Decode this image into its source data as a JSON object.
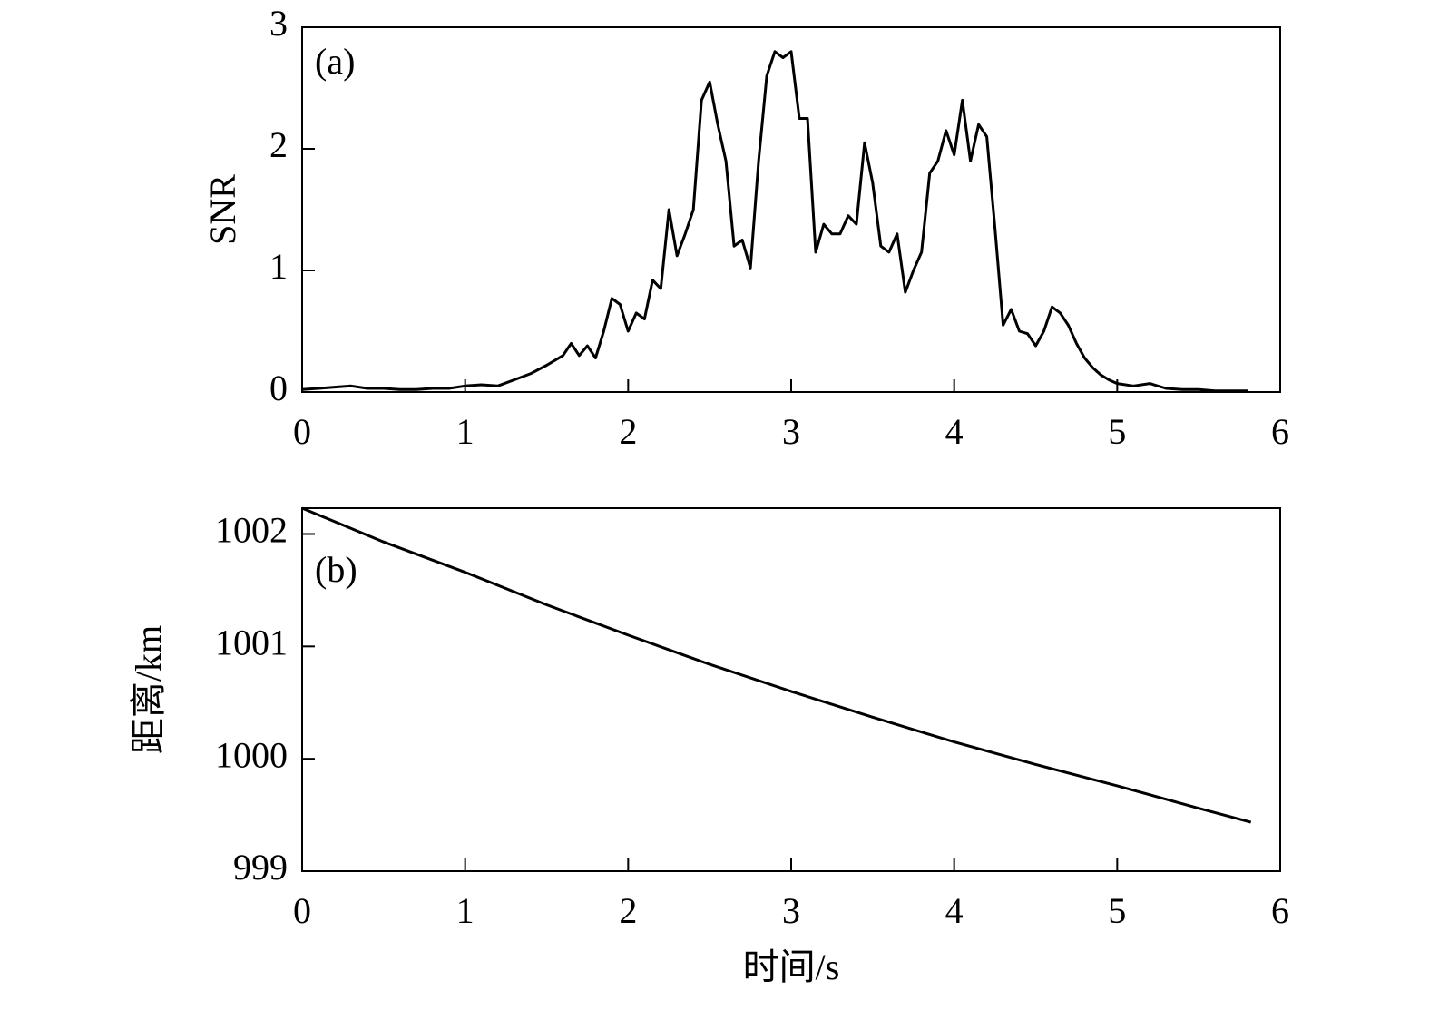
{
  "chart_data": [
    {
      "type": "line",
      "annotation": "(a)",
      "ylabel": "SNR",
      "color": "#000000",
      "x": [
        0,
        0.1,
        0.2,
        0.3,
        0.4,
        0.5,
        0.6,
        0.7,
        0.8,
        0.9,
        1.0,
        1.1,
        1.2,
        1.3,
        1.4,
        1.5,
        1.6,
        1.65,
        1.7,
        1.75,
        1.8,
        1.85,
        1.9,
        1.95,
        2.0,
        2.05,
        2.1,
        2.15,
        2.2,
        2.25,
        2.3,
        2.35,
        2.4,
        2.45,
        2.5,
        2.55,
        2.6,
        2.65,
        2.7,
        2.75,
        2.8,
        2.85,
        2.9,
        2.95,
        3.0,
        3.05,
        3.1,
        3.15,
        3.2,
        3.25,
        3.3,
        3.35,
        3.4,
        3.45,
        3.5,
        3.55,
        3.6,
        3.65,
        3.7,
        3.75,
        3.8,
        3.85,
        3.9,
        3.95,
        4.0,
        4.05,
        4.1,
        4.15,
        4.2,
        4.25,
        4.3,
        4.35,
        4.4,
        4.45,
        4.5,
        4.55,
        4.6,
        4.65,
        4.7,
        4.75,
        4.8,
        4.85,
        4.9,
        4.95,
        5.0,
        5.1,
        5.2,
        5.3,
        5.4,
        5.5,
        5.6,
        5.7,
        5.8
      ],
      "values": [
        0.02,
        0.03,
        0.04,
        0.05,
        0.03,
        0.03,
        0.02,
        0.02,
        0.03,
        0.03,
        0.05,
        0.06,
        0.05,
        0.1,
        0.15,
        0.22,
        0.3,
        0.4,
        0.3,
        0.38,
        0.28,
        0.5,
        0.77,
        0.72,
        0.5,
        0.65,
        0.6,
        0.92,
        0.85,
        1.5,
        1.12,
        1.3,
        1.5,
        2.4,
        2.55,
        2.2,
        1.9,
        1.2,
        1.25,
        1.02,
        1.9,
        2.6,
        2.8,
        2.75,
        2.8,
        2.25,
        2.25,
        1.15,
        1.38,
        1.3,
        1.3,
        1.45,
        1.38,
        2.05,
        1.72,
        1.2,
        1.15,
        1.3,
        0.82,
        1.0,
        1.15,
        1.8,
        1.9,
        2.15,
        1.95,
        2.4,
        1.9,
        2.2,
        2.1,
        1.35,
        0.55,
        0.68,
        0.5,
        0.48,
        0.38,
        0.5,
        0.7,
        0.65,
        0.55,
        0.4,
        0.28,
        0.2,
        0.14,
        0.1,
        0.07,
        0.05,
        0.07,
        0.03,
        0.02,
        0.02,
        0.01,
        0.01,
        0.01
      ],
      "xlim": [
        0,
        6
      ],
      "xticks": [
        0,
        1,
        2,
        3,
        4,
        5,
        6
      ],
      "ylim": [
        0,
        3
      ],
      "yticks": [
        0,
        1,
        2,
        3
      ]
    },
    {
      "type": "line",
      "annotation": "(b)",
      "ylabel": "距离/km",
      "xlabel": "时间/s",
      "color": "#000000",
      "x": [
        0,
        0.5,
        1,
        1.5,
        2,
        2.5,
        3,
        3.5,
        4,
        4.5,
        5,
        5.5,
        5.82
      ],
      "values": [
        1002.23,
        1001.93,
        1001.66,
        1001.37,
        1001.1,
        1000.84,
        1000.6,
        1000.37,
        1000.15,
        999.95,
        999.76,
        999.56,
        999.435
      ],
      "xlim": [
        0,
        6
      ],
      "xticks": [
        0,
        1,
        2,
        3,
        4,
        5,
        6
      ],
      "ylim": [
        999,
        1002.23
      ],
      "yticks": [
        999,
        1000,
        1001,
        1002
      ]
    }
  ]
}
